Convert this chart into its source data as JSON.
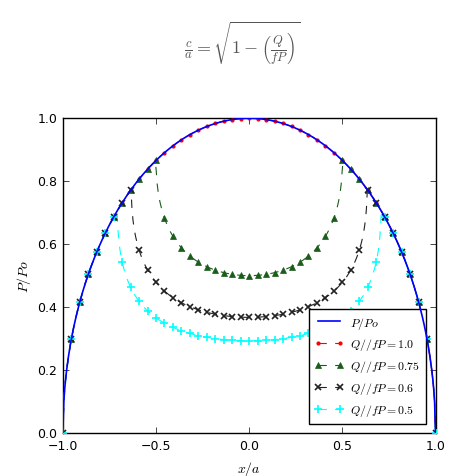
{
  "title_formula": "$\\frac{c}{a} = \\sqrt{1 - \\left(\\frac{Q}{fP}\\right)}$",
  "xlabel": "$x/a$",
  "ylabel": "$P/Po$",
  "xlim": [
    -1.0,
    1.0
  ],
  "ylim": [
    0.0,
    1.0
  ],
  "xticks": [
    -1.0,
    -0.5,
    0.0,
    0.5,
    1.0
  ],
  "yticks": [
    0.0,
    0.2,
    0.4,
    0.6,
    0.8,
    1.0
  ],
  "series": [
    {
      "label": "$P/Po$",
      "QfP": 0.0,
      "line_color": "blue",
      "marker": null,
      "linestyle": "-",
      "marker_color": "blue",
      "linewidth": 1.2
    },
    {
      "label": "$Q//fP = 1.0$",
      "QfP": 1.0,
      "line_color": "red",
      "marker": ".",
      "linestyle": "--",
      "marker_color": "red",
      "linewidth": 0.8
    },
    {
      "label": "$Q//fP = 0.75$",
      "QfP": 0.75,
      "line_color": "#1a5c1a",
      "marker": "^",
      "linestyle": "--",
      "marker_color": "#1a5c1a",
      "linewidth": 0.8
    },
    {
      "label": "$Q//fP = 0.6$",
      "QfP": 0.6,
      "line_color": "#222222",
      "marker": "x",
      "linestyle": "--",
      "marker_color": "#222222",
      "linewidth": 0.8
    },
    {
      "label": "$Q//fP = 0.5$",
      "QfP": 0.5,
      "line_color": "cyan",
      "marker": "+",
      "linestyle": "--",
      "marker_color": "cyan",
      "linewidth": 0.8
    }
  ],
  "n_points": 400,
  "marker_points": 45,
  "figsize": [
    4.49,
    4.77
  ],
  "dpi": 100,
  "formula_fontsize": 13,
  "axis_fontsize": 10,
  "tick_fontsize": 9,
  "legend_fontsize": 8.5
}
